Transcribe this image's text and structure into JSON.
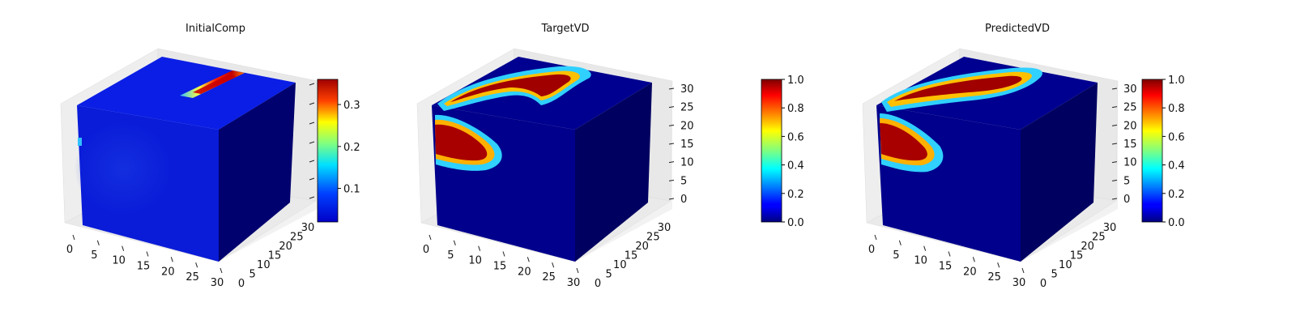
{
  "chart_data": [
    {
      "type": "voxel3d",
      "title": "InitialComp",
      "colormap": "jet",
      "x_ticks": [
        "0",
        "5",
        "10",
        "15",
        "20",
        "25",
        "30"
      ],
      "y_ticks": [
        "0",
        "5",
        "10",
        "15",
        "20",
        "25",
        "30"
      ],
      "z_ticks": [],
      "colorbar": {
        "min": 0.02,
        "max": 0.36,
        "ticks": [
          "0.1",
          "0.2",
          "0.3"
        ],
        "tick_values": [
          0.1,
          0.2,
          0.3
        ]
      },
      "description_values": {
        "background": 0.05,
        "hotspot_max": 0.36
      }
    },
    {
      "type": "voxel3d",
      "title": "TargetVD",
      "colormap": "jet",
      "x_ticks": [
        "0",
        "5",
        "10",
        "15",
        "20",
        "25",
        "30"
      ],
      "y_ticks": [
        "0",
        "5",
        "10",
        "15",
        "20",
        "25",
        "30"
      ],
      "z_ticks": [
        "0",
        "5",
        "10",
        "15",
        "20",
        "25",
        "30"
      ],
      "colorbar": {
        "min": 0.0,
        "max": 1.0,
        "ticks": [
          "0.0",
          "0.2",
          "0.4",
          "0.6",
          "0.8",
          "1.0"
        ],
        "tick_values": [
          0,
          0.2,
          0.4,
          0.6,
          0.8,
          1.0
        ]
      }
    },
    {
      "type": "voxel3d",
      "title": "PredictedVD",
      "colormap": "jet",
      "x_ticks": [
        "0",
        "5",
        "10",
        "15",
        "20",
        "25",
        "30"
      ],
      "y_ticks": [
        "0",
        "5",
        "10",
        "15",
        "20",
        "25",
        "30"
      ],
      "z_ticks": [
        "0",
        "5",
        "10",
        "15",
        "20",
        "25",
        "30"
      ],
      "colorbar": {
        "min": 0.0,
        "max": 1.0,
        "ticks": [
          "0.0",
          "0.2",
          "0.4",
          "0.6",
          "0.8",
          "1.0"
        ],
        "tick_values": [
          0,
          0.2,
          0.4,
          0.6,
          0.8,
          1.0
        ]
      }
    }
  ]
}
